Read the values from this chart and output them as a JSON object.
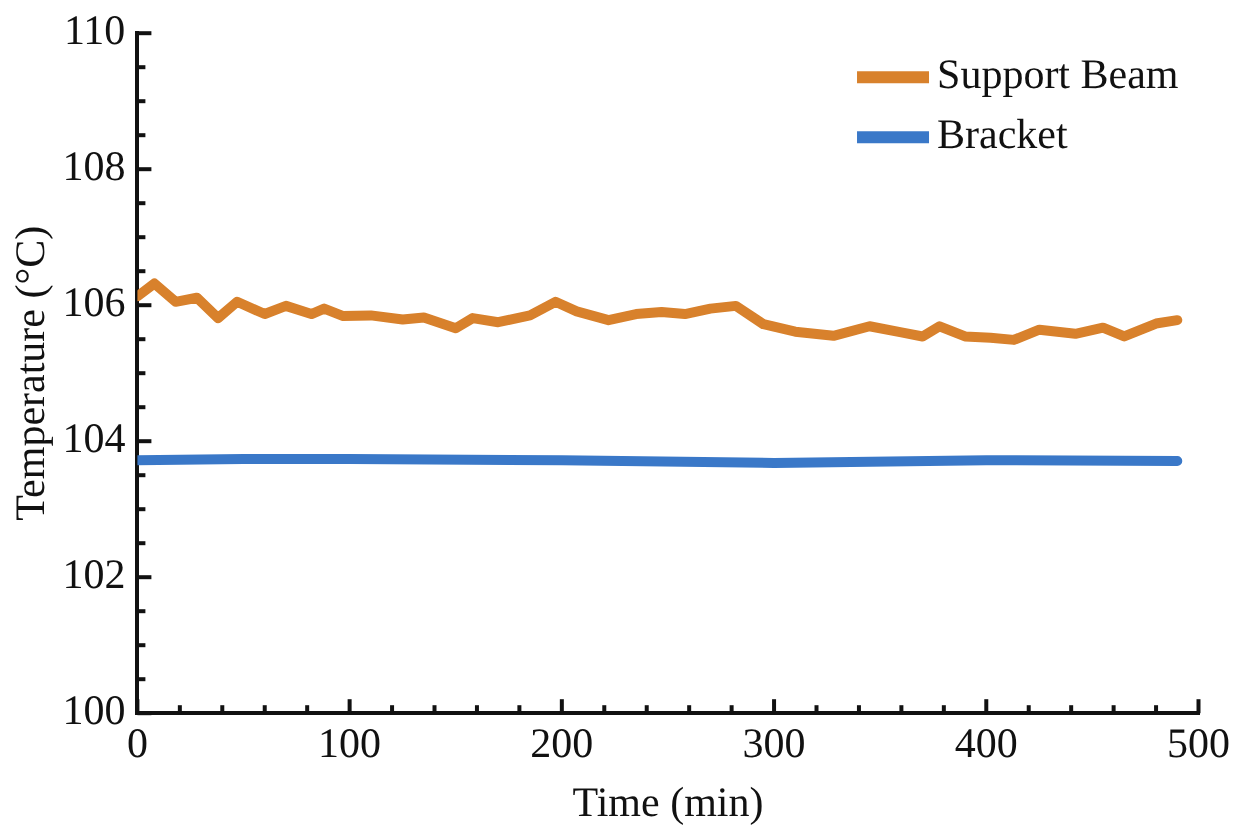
{
  "chart_data": {
    "type": "line",
    "xlabel": "Time (min)",
    "ylabel": "Temperature (°C)",
    "xlim": [
      0,
      500
    ],
    "ylim": [
      100,
      110
    ],
    "xticks": [
      0,
      {
        "value": 20,
        "label": null
      },
      {
        "value": 40,
        "label": null
      },
      {
        "value": 60,
        "label": null
      },
      {
        "value": 80,
        "label": null
      },
      100,
      {
        "value": 120,
        "label": null
      },
      {
        "value": 140,
        "label": null
      },
      {
        "value": 160,
        "label": null
      },
      {
        "value": 180,
        "label": null
      },
      200,
      {
        "value": 220,
        "label": null
      },
      {
        "value": 240,
        "label": null
      },
      {
        "value": 260,
        "label": null
      },
      {
        "value": 280,
        "label": null
      },
      300,
      {
        "value": 320,
        "label": null
      },
      {
        "value": 340,
        "label": null
      },
      {
        "value": 360,
        "label": null
      },
      {
        "value": 380,
        "label": null
      },
      400,
      {
        "value": 420,
        "label": null
      },
      {
        "value": 440,
        "label": null
      },
      {
        "value": 460,
        "label": null
      },
      {
        "value": 480,
        "label": null
      },
      500
    ],
    "yticks": [
      100,
      {
        "value": 100.5,
        "label": null
      },
      {
        "value": 101,
        "label": null
      },
      {
        "value": 101.5,
        "label": null
      },
      102,
      {
        "value": 102.5,
        "label": null
      },
      {
        "value": 103,
        "label": null
      },
      {
        "value": 103.5,
        "label": null
      },
      104,
      {
        "value": 104.5,
        "label": null
      },
      {
        "value": 105,
        "label": null
      },
      {
        "value": 105.5,
        "label": null
      },
      106,
      {
        "value": 106.5,
        "label": null
      },
      {
        "value": 107,
        "label": null
      },
      {
        "value": 107.5,
        "label": null
      },
      108,
      {
        "value": 108.5,
        "label": null
      },
      {
        "value": 109,
        "label": null
      },
      {
        "value": 109.5,
        "label": null
      },
      110
    ],
    "grid": false,
    "legend": "top right",
    "marker": "none",
    "line_style": "solid",
    "series": [
      {
        "name": "Support Beam",
        "color": "#d8812c",
        "x": [
          0,
          8,
          18,
          28,
          38,
          47,
          60,
          70,
          82,
          88,
          97,
          110,
          125,
          135,
          150,
          158,
          170,
          185,
          197,
          207,
          222,
          235,
          247,
          258,
          270,
          282,
          295,
          310,
          328,
          345,
          360,
          370,
          378,
          390,
          402,
          413,
          425,
          442,
          455,
          465,
          480,
          490
        ],
        "values": [
          106.13,
          106.32,
          106.05,
          106.11,
          105.81,
          106.05,
          105.87,
          105.99,
          105.87,
          105.95,
          105.84,
          105.85,
          105.79,
          105.82,
          105.66,
          105.81,
          105.75,
          105.85,
          106.05,
          105.91,
          105.78,
          105.87,
          105.9,
          105.87,
          105.95,
          105.99,
          105.72,
          105.61,
          105.55,
          105.69,
          105.6,
          105.54,
          105.69,
          105.54,
          105.52,
          105.49,
          105.64,
          105.58,
          105.67,
          105.54,
          105.73,
          105.78
        ]
      },
      {
        "name": "Bracket",
        "color": "#3a78c8",
        "x": [
          0,
          50,
          100,
          200,
          300,
          400,
          490
        ],
        "values": [
          103.72,
          103.74,
          103.74,
          103.72,
          103.68,
          103.72,
          103.71
        ]
      }
    ]
  }
}
